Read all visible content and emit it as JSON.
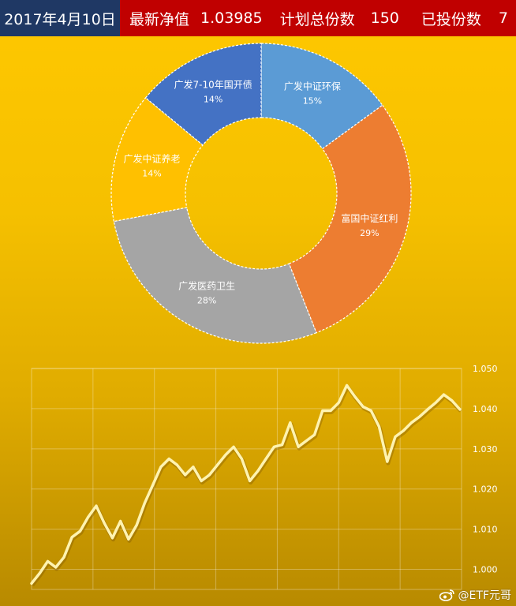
{
  "header": {
    "date": "2017年4月10日",
    "nav_label": "最新净值",
    "nav_value": "1.03985",
    "plan_label": "计划总份数",
    "plan_value": "150",
    "invested_label": "已投份数",
    "invested_value": "7"
  },
  "watermark": "@ETF元哥",
  "chart_data": [
    {
      "type": "pie",
      "variant": "donut",
      "slices": [
        {
          "label": "广发中证环保",
          "percent_label": "15%",
          "value": 15,
          "color": "#5B9BD5"
        },
        {
          "label": "富国中证红利",
          "percent_label": "29%",
          "value": 29,
          "color": "#ED7D31"
        },
        {
          "label": "广发医药卫生",
          "percent_label": "28%",
          "value": 28,
          "color": "#A5A5A5"
        },
        {
          "label": "广发中证养老",
          "percent_label": "14%",
          "value": 14,
          "color": "#FFC000"
        },
        {
          "label": "广发7-10年国开债",
          "percent_label": "14%",
          "value": 14,
          "color": "#4472C4"
        }
      ]
    },
    {
      "type": "line",
      "color": "#FFF3B0",
      "grid": true,
      "y_axis_position": "right",
      "ylim": [
        0.995,
        1.05
      ],
      "yticks": [
        "1.050",
        "1.040",
        "1.030",
        "1.020",
        "1.010",
        "1.000"
      ],
      "yticks_values": [
        1.05,
        1.04,
        1.03,
        1.02,
        1.01,
        1.0
      ],
      "values": [
        0.9965,
        0.999,
        1.002,
        1.0005,
        1.003,
        1.008,
        1.0095,
        1.013,
        1.0158,
        1.0115,
        1.0078,
        1.012,
        1.0075,
        1.011,
        1.0165,
        1.021,
        1.0255,
        1.0275,
        1.026,
        1.0235,
        1.0255,
        1.022,
        1.0235,
        1.026,
        1.0285,
        1.0305,
        1.0275,
        1.022,
        1.0245,
        1.0275,
        1.0305,
        1.031,
        1.0365,
        1.0305,
        1.032,
        1.0335,
        1.0395,
        1.0395,
        1.0415,
        1.0458,
        1.043,
        1.0405,
        1.0395,
        1.0355,
        1.0268,
        1.033,
        1.0345,
        1.0365,
        1.038,
        1.0398,
        1.0415,
        1.0435,
        1.042,
        1.0398
      ]
    }
  ]
}
